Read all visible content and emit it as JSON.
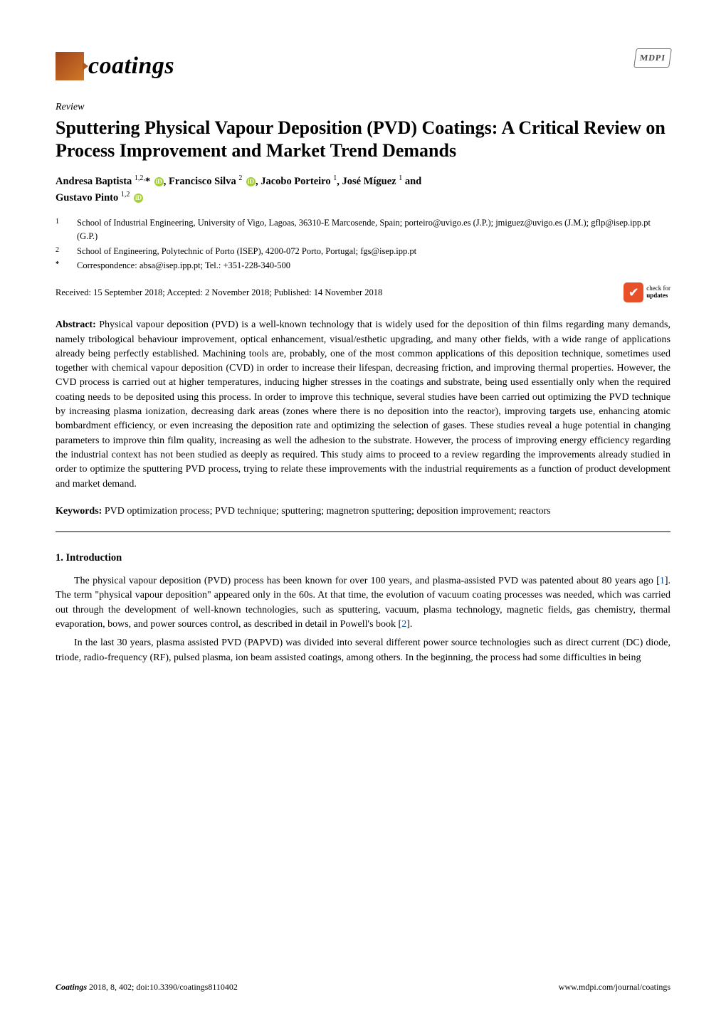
{
  "header": {
    "journal_name": "coatings",
    "publisher_logo": "MDPI"
  },
  "article": {
    "type": "Review",
    "title": "Sputtering Physical Vapour Deposition (PVD) Coatings: A Critical Review on Process Improvement and Market Trend Demands",
    "authors_line1": "Andresa Baptista 1,2,* , Francisco Silva 2 , Jacobo Porteiro 1, José Míguez 1 and",
    "authors_line2": "Gustavo Pinto 1,2",
    "author_a1_name": "Andresa Baptista",
    "author_a1_sup": "1,2,",
    "author_a1_star": "*",
    "author_a2_name": ", Francisco Silva",
    "author_a2_sup": "2",
    "author_a3_name": ", Jacobo Porteiro",
    "author_a3_sup": "1",
    "author_a4_name": ", José Míguez",
    "author_a4_sup": "1",
    "author_a4_tail": " and",
    "author_a5_name": "Gustavo Pinto",
    "author_a5_sup": "1,2",
    "affiliations": [
      {
        "num": "1",
        "text": "School of Industrial Engineering, University of Vigo, Lagoas, 36310-E Marcosende, Spain; porteiro@uvigo.es (J.P.); jmiguez@uvigo.es (J.M.); gflp@isep.ipp.pt (G.P.)"
      },
      {
        "num": "2",
        "text": "School of Engineering, Polytechnic of Porto (ISEP), 4200-072 Porto, Portugal; fgs@isep.ipp.pt"
      },
      {
        "num": "*",
        "text": "Correspondence: absa@isep.ipp.pt; Tel.: +351-228-340-500"
      }
    ],
    "received": "Received: 15 September 2018; Accepted: 2 November 2018; Published: 14 November 2018",
    "check_updates_line1": "check for",
    "check_updates_line2": "updates",
    "abstract_label": "Abstract:",
    "abstract_text": " Physical vapour deposition (PVD) is a well-known technology that is widely used for the deposition of thin films regarding many demands, namely tribological behaviour improvement, optical enhancement, visual/esthetic upgrading, and many other fields, with a wide range of applications already being perfectly established. Machining tools are, probably, one of the most common applications of this deposition technique, sometimes used together with chemical vapour deposition (CVD) in order to increase their lifespan, decreasing friction, and improving thermal properties. However, the CVD process is carried out at higher temperatures, inducing higher stresses in the coatings and substrate, being used essentially only when the required coating needs to be deposited using this process. In order to improve this technique, several studies have been carried out optimizing the PVD technique by increasing plasma ionization, decreasing dark areas (zones where there is no deposition into the reactor), improving targets use, enhancing atomic bombardment efficiency, or even increasing the deposition rate and optimizing the selection of gases. These studies reveal a huge potential in changing parameters to improve thin film quality, increasing as well the adhesion to the substrate. However, the process of improving energy efficiency regarding the industrial context has not been studied as deeply as required. This study aims to proceed to a review regarding the improvements already studied in order to optimize the sputtering PVD process, trying to relate these improvements with the industrial requirements as a function of product development and market demand.",
    "keywords_label": "Keywords:",
    "keywords_text": " PVD optimization process; PVD technique; sputtering; magnetron sputtering; deposition improvement; reactors"
  },
  "section1": {
    "heading": "1. Introduction",
    "para1_a": "The physical vapour deposition (PVD) process has been known for over 100 years, and plasma-assisted PVD was patented about 80 years ago [",
    "cite1": "1",
    "para1_b": "]. The term \"physical vapour deposition\" appeared only in the 60s. At that time, the evolution of vacuum coating processes was needed, which was carried out through the development of well-known technologies, such as sputtering, vacuum, plasma technology, magnetic fields, gas chemistry, thermal evaporation, bows, and power sources control, as described in detail in Powell's book [",
    "cite2": "2",
    "para1_c": "].",
    "para2": "In the last 30 years, plasma assisted PVD (PAPVD) was divided into several different power source technologies such as direct current (DC) diode, triode, radio-frequency (RF), pulsed plasma, ion beam assisted coatings, among others. In the beginning, the process had some difficulties in being"
  },
  "footer": {
    "journal": "Coatings",
    "year_vol": " 2018, 8, 402; doi:10.3390/coatings8110402",
    "url": "www.mdpi.com/journal/coatings"
  },
  "colors": {
    "orcid_bg": "#a6ce39",
    "check_bg": "#e8502a",
    "cite_link": "#0b5cab",
    "logo_grad_a": "#a0441a",
    "logo_grad_b": "#d07828"
  }
}
